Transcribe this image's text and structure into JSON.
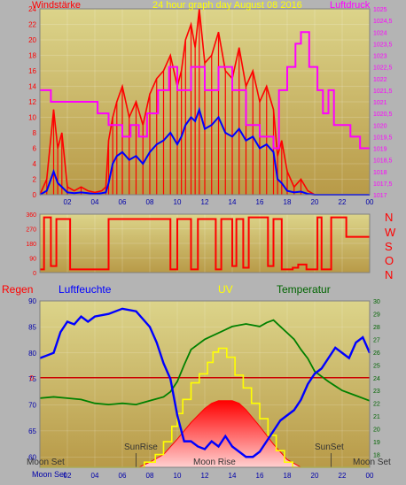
{
  "colors": {
    "wind": "#ff0000",
    "wind_avg": "#0000ff",
    "pressure": "#ff00ff",
    "direction": "#ff0000",
    "humidity": "#0000ff",
    "temperature": "#008000",
    "uv": "#ffff00",
    "rain": "#cc0000",
    "solar": "#ff0000",
    "axis_text": "#0000aa",
    "bg_top": "#dcd48a",
    "bg_bottom": "#b89a48"
  },
  "header": {
    "left_label": "Windstärke",
    "title": "24 hour graph day   August 08 2016",
    "right_label": "Luftdruck"
  },
  "direction_letters": [
    "N",
    "W",
    "S",
    "O",
    "N"
  ],
  "bottom_header": {
    "rain": "Regen",
    "humidity": "Luftfeuchte",
    "uv": "UV",
    "temperature": "Temperatur"
  },
  "events": {
    "moon_set": "Moon Set",
    "sun_rise": "SunRise",
    "moon_rise": "Moon Rise",
    "sun_set": "SunSet"
  },
  "chart_data": [
    {
      "type": "line",
      "name": "wind-pressure",
      "xlim": [
        0,
        24
      ],
      "x_ticks": [
        "02",
        "04",
        "06",
        "08",
        "10",
        "12",
        "14",
        "16",
        "18",
        "20",
        "22",
        "00"
      ],
      "ylim_left": [
        0,
        24
      ],
      "y_ticks_left": [
        0,
        2,
        4,
        6,
        8,
        10,
        12,
        14,
        16,
        18,
        20,
        22,
        24
      ],
      "ylim_right": [
        1017,
        1025
      ],
      "y_ticks_right": [
        "1017",
        "1017,5",
        "1018",
        "1018,5",
        "1019",
        "1019,5",
        "1020",
        "1020,5",
        "1021",
        "1021,5",
        "1022",
        "1022,5",
        "1023",
        "1023,5",
        "1024",
        "1024,5",
        "1025"
      ],
      "series": [
        {
          "key": "wind_gust",
          "x": [
            0,
            0.5,
            1,
            1.3,
            1.6,
            2,
            2.5,
            3,
            3.5,
            4,
            4.5,
            4.8,
            5.0,
            5.3,
            5.6,
            6,
            6.5,
            7,
            7.5,
            8,
            8.5,
            9,
            9.5,
            10,
            10.3,
            10.6,
            11,
            11.3,
            11.6,
            12,
            12.5,
            13,
            13.5,
            14,
            14.5,
            15,
            15.5,
            16,
            16.5,
            17,
            17.3,
            17.6,
            18,
            18.5,
            19,
            19.5,
            20,
            21,
            22,
            23,
            24
          ],
          "y": [
            0,
            2,
            11,
            6,
            8,
            1,
            0.5,
            1,
            0.5,
            0.3,
            0.5,
            1,
            7,
            10,
            12,
            14,
            10,
            12,
            9,
            13,
            15,
            16,
            18,
            14,
            16,
            20,
            22,
            19,
            24,
            17,
            18,
            21,
            16,
            15,
            19,
            14,
            16,
            12,
            14,
            11,
            5,
            7,
            3,
            1,
            2,
            0.5,
            0,
            0,
            0,
            0,
            0
          ]
        },
        {
          "key": "wind_avg",
          "x": [
            0,
            0.5,
            1,
            1.3,
            1.6,
            2,
            2.5,
            3,
            3.5,
            4,
            4.5,
            4.8,
            5.0,
            5.3,
            5.6,
            6,
            6.5,
            7,
            7.5,
            8,
            8.5,
            9,
            9.5,
            10,
            10.3,
            10.6,
            11,
            11.3,
            11.6,
            12,
            12.5,
            13,
            13.5,
            14,
            14.5,
            15,
            15.5,
            16,
            16.5,
            17,
            17.3,
            17.6,
            18,
            18.5,
            19,
            19.5,
            20,
            21,
            22,
            23,
            24
          ],
          "y": [
            0,
            0.5,
            3,
            1.5,
            1,
            0.3,
            0.2,
            0.3,
            0.2,
            0.1,
            0.2,
            0.3,
            1.5,
            4,
            5,
            5.5,
            4.5,
            5,
            4,
            5.5,
            6.5,
            7,
            8,
            6.5,
            7.5,
            9,
            10,
            9.5,
            11,
            8.5,
            9,
            10,
            8,
            7.5,
            8.5,
            7,
            7.5,
            6,
            6.5,
            5.5,
            2,
            1.5,
            0.5,
            0.3,
            0.4,
            0.1,
            0,
            0,
            0,
            0,
            0
          ]
        },
        {
          "key": "pressure",
          "axis": "right",
          "x": [
            0,
            0.8,
            0.8,
            4.2,
            4.2,
            5.0,
            5.0,
            6.0,
            6.0,
            6.6,
            6.6,
            7.2,
            7.2,
            7.8,
            7.8,
            8.6,
            8.6,
            9.4,
            9.4,
            10.0,
            10.0,
            11.0,
            11.0,
            12.0,
            12.0,
            13.0,
            13.0,
            14.0,
            14.0,
            15.0,
            15.0,
            16.0,
            16.0,
            17.0,
            17.0,
            17.4,
            17.4,
            18.0,
            18.0,
            18.6,
            18.6,
            19.0,
            19.0,
            19.6,
            19.6,
            20.2,
            20.2,
            20.6,
            20.6,
            21.0,
            21.0,
            21.4,
            21.4,
            22.6,
            22.6,
            23.3,
            23.3,
            24
          ],
          "y": [
            1021.5,
            1021.5,
            1021,
            1021,
            1020.5,
            1020.5,
            1020,
            1020,
            1019.5,
            1019.5,
            1020,
            1020,
            1019.5,
            1019.5,
            1020.5,
            1020.5,
            1021.5,
            1021.5,
            1022.5,
            1022.5,
            1021.5,
            1021.5,
            1022.5,
            1022.5,
            1021.5,
            1021.5,
            1022.5,
            1022.5,
            1021.5,
            1021.5,
            1020,
            1020,
            1019.5,
            1019.5,
            1019,
            1019,
            1021.5,
            1021.5,
            1022.5,
            1022.5,
            1023.5,
            1023.5,
            1024,
            1024,
            1022.5,
            1022.5,
            1021.5,
            1021.5,
            1020.5,
            1020.5,
            1021.5,
            1021.5,
            1020,
            1020,
            1019.5,
            1019.5,
            1019,
            1019
          ]
        }
      ]
    },
    {
      "type": "line",
      "name": "wind-direction",
      "xlim": [
        0,
        24
      ],
      "ylim": [
        0,
        360
      ],
      "y_ticks": [
        0,
        90,
        180,
        270,
        360
      ],
      "series": [
        {
          "key": "direction",
          "x": [
            0,
            0.3,
            0.3,
            0.8,
            0.8,
            1.2,
            1.2,
            2.2,
            2.2,
            5.0,
            5.0,
            9.5,
            9.5,
            10.0,
            10.0,
            11.0,
            11.0,
            11.5,
            11.5,
            12.8,
            12.8,
            13.2,
            13.2,
            14.0,
            14.0,
            14.3,
            14.3,
            14.8,
            14.8,
            15.2,
            15.2,
            16.6,
            16.6,
            17.0,
            17.0,
            17.6,
            17.6,
            18.4,
            18.4,
            18.8,
            18.8,
            19.4,
            19.4,
            20.2,
            20.2,
            20.5,
            20.5,
            21.2,
            21.2,
            22.3,
            22.3,
            24
          ],
          "y": [
            20,
            20,
            340,
            340,
            40,
            40,
            330,
            330,
            20,
            20,
            330,
            330,
            20,
            20,
            330,
            330,
            20,
            20,
            330,
            330,
            20,
            20,
            330,
            330,
            40,
            40,
            330,
            330,
            30,
            30,
            340,
            340,
            40,
            40,
            330,
            330,
            20,
            20,
            30,
            30,
            50,
            50,
            20,
            20,
            340,
            340,
            20,
            20,
            340,
            340,
            220,
            220
          ]
        }
      ]
    },
    {
      "type": "line",
      "name": "humidity-temperature-uv",
      "xlim": [
        0,
        24
      ],
      "ylim_left": [
        58,
        90
      ],
      "y_ticks_left": [
        60,
        65,
        70,
        75,
        80,
        85,
        90
      ],
      "ylim_right": [
        17,
        30
      ],
      "y_ticks_right": [
        18,
        19,
        20,
        21,
        22,
        23,
        24,
        25,
        26,
        27,
        28,
        29,
        30
      ],
      "rain_label": "0",
      "series": [
        {
          "key": "humidity",
          "axis": "left",
          "x": [
            0,
            0.5,
            1,
            1.5,
            2,
            2.5,
            3,
            3.5,
            4,
            5,
            6,
            7,
            8,
            8.5,
            9,
            9.5,
            10,
            10.5,
            11,
            11.5,
            12,
            12.5,
            13,
            13.5,
            14,
            14.5,
            15,
            15.5,
            16,
            16.5,
            17,
            17.5,
            18,
            18.5,
            19,
            19.5,
            20,
            20.5,
            21,
            21.5,
            22,
            22.5,
            23,
            23.5,
            24
          ],
          "y": [
            79,
            79.5,
            80,
            84,
            86,
            85.5,
            87,
            86,
            87,
            87.5,
            88.5,
            88,
            85,
            82,
            78,
            75,
            68,
            63,
            63,
            62,
            61.5,
            63,
            62,
            64,
            62,
            61,
            60,
            60,
            61,
            63,
            65,
            67,
            68,
            69,
            71,
            74,
            76,
            77,
            79,
            81,
            80,
            79,
            82,
            83,
            80
          ]
        },
        {
          "key": "temperature",
          "axis": "right",
          "x": [
            0,
            1,
            2,
            3,
            4,
            5,
            6,
            7,
            8,
            9,
            9.5,
            10,
            10.5,
            11,
            12,
            13,
            14,
            15,
            16,
            16.5,
            17,
            17.5,
            18,
            18.5,
            19,
            19.5,
            20,
            21,
            22,
            23,
            24
          ],
          "y": [
            22.4,
            22.5,
            22.4,
            22.3,
            22.0,
            21.9,
            22.0,
            21.9,
            22.2,
            22.5,
            22.9,
            23.7,
            25.0,
            26.2,
            27.0,
            27.5,
            28.0,
            28.2,
            28.0,
            28.3,
            28.5,
            28.0,
            27.5,
            27.0,
            26.2,
            25.5,
            24.5,
            23.7,
            23.0,
            22.6,
            22.2
          ]
        },
        {
          "key": "uv",
          "axis": "right",
          "x": [
            0,
            7.6,
            7.6,
            8.4,
            8.4,
            9.0,
            9.0,
            9.6,
            9.6,
            10.0,
            10.0,
            10.4,
            10.4,
            11.0,
            11.0,
            11.6,
            11.6,
            12.2,
            12.2,
            12.6,
            12.6,
            13.0,
            13.0,
            13.6,
            13.6,
            14.2,
            14.2,
            14.8,
            14.8,
            15.4,
            15.4,
            16.0,
            16.0,
            16.6,
            16.6,
            17.2,
            17.2,
            17.8,
            17.8,
            18.4,
            18.4,
            24
          ],
          "y": [
            17,
            17,
            17.4,
            17.4,
            18,
            18,
            19,
            19,
            20.2,
            20.2,
            21.2,
            21.2,
            22.3,
            22.3,
            23.6,
            23.6,
            24.3,
            24.3,
            25.2,
            25.2,
            26,
            26,
            26.3,
            26.3,
            25.6,
            25.6,
            24.2,
            24.2,
            23.2,
            23.2,
            22,
            22,
            20.8,
            20.8,
            19.5,
            19.5,
            18.3,
            18.3,
            17.4,
            17.4,
            17,
            17
          ]
        },
        {
          "key": "solar",
          "axis": "right",
          "x": [
            0,
            7.2,
            8,
            9,
            10,
            11,
            12,
            12.5,
            13,
            14,
            14.5,
            15,
            16,
            17,
            18,
            19,
            24
          ],
          "y": [
            17,
            17,
            17.4,
            18,
            19.2,
            20.5,
            21.6,
            22.0,
            22.2,
            22.2,
            22.0,
            21.5,
            20.2,
            18.8,
            17.6,
            17,
            17
          ]
        }
      ]
    }
  ]
}
